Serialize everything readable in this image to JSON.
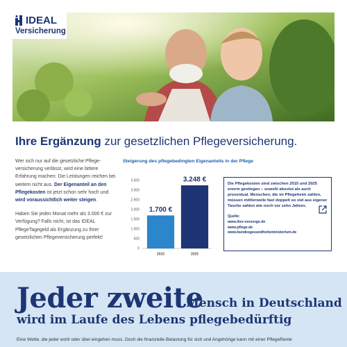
{
  "logo": {
    "brand": "IDEAL",
    "sub": "Versicherung"
  },
  "headline": {
    "bold": "Ihre Ergänzung",
    "rest": " zur gesetzlichen Pflegeversicherung."
  },
  "intro": {
    "paragraphs": [
      [
        "Wer sich nur auf die gesetzliche Pflege-versicherung verlässt, wird eine bittere Erfahrung machen: Die Leistungen reichen bei weitem nicht aus. ",
        "Der Eigenanteil an den Pflegekosten",
        " ist jetzt schon sehr hoch und ",
        "wird voraussichtlich weiter steigen",
        "."
      ],
      [
        "Haben Sie jeden Monat mehr als 3.000 € zur Verfügung? Falls nicht, ist das IDEAL PflegeTagegeld als Ergänzung zu Ihrer gesetzlichen Pflegeversicherung perfekt!"
      ]
    ]
  },
  "chart_data": {
    "type": "bar",
    "title": "Steigerung des pflegebedingten Eigenanteils in der Pflege",
    "categories": [
      "2015",
      "2025"
    ],
    "values": [
      1700,
      3248
    ],
    "value_labels": [
      "1.700 €",
      "3.248 €"
    ],
    "colors": [
      "#2b86cc",
      "#1d3575"
    ],
    "ylim": [
      0,
      3500
    ],
    "yticks": [
      {
        "value": 0,
        "label": "0"
      },
      {
        "value": 500,
        "label": "500"
      },
      {
        "value": 1000,
        "label": "1.000"
      },
      {
        "value": 1500,
        "label": "1.500"
      },
      {
        "value": 2000,
        "label": "2.000"
      },
      {
        "value": 2500,
        "label": "2.500"
      },
      {
        "value": 3000,
        "label": "3.000"
      },
      {
        "value": 3500,
        "label": "3.500"
      }
    ],
    "grid": false
  },
  "infobox": {
    "text": "Die Pflegekosten sind zwischen 2015 und 2025 enorm gestiegen – sowohl absolut als auch prozentual. Menschen, die im Pflegeheim zahlen, müssen mittlerweile fast doppelt so viel aus eigener Tasche zahlen wie noch vor zehn Jahren.",
    "source_label": "Quelle:",
    "sources": [
      "www.ihre-vorsorge.de",
      "www.pflege.de",
      "www.bundesgesundheitsministerium.de"
    ]
  },
  "banner": {
    "big": "Jeder zweite",
    "rest": "Mensch in Deutschland",
    "line2": "wird im Laufe des Lebens pflegebedürftig",
    "body": "Eine Wette, die jeder wohl oder übel eingehen muss. Doch die finanzielle Belastung für sich und Angehörige kann mit einer PflegeRente"
  }
}
